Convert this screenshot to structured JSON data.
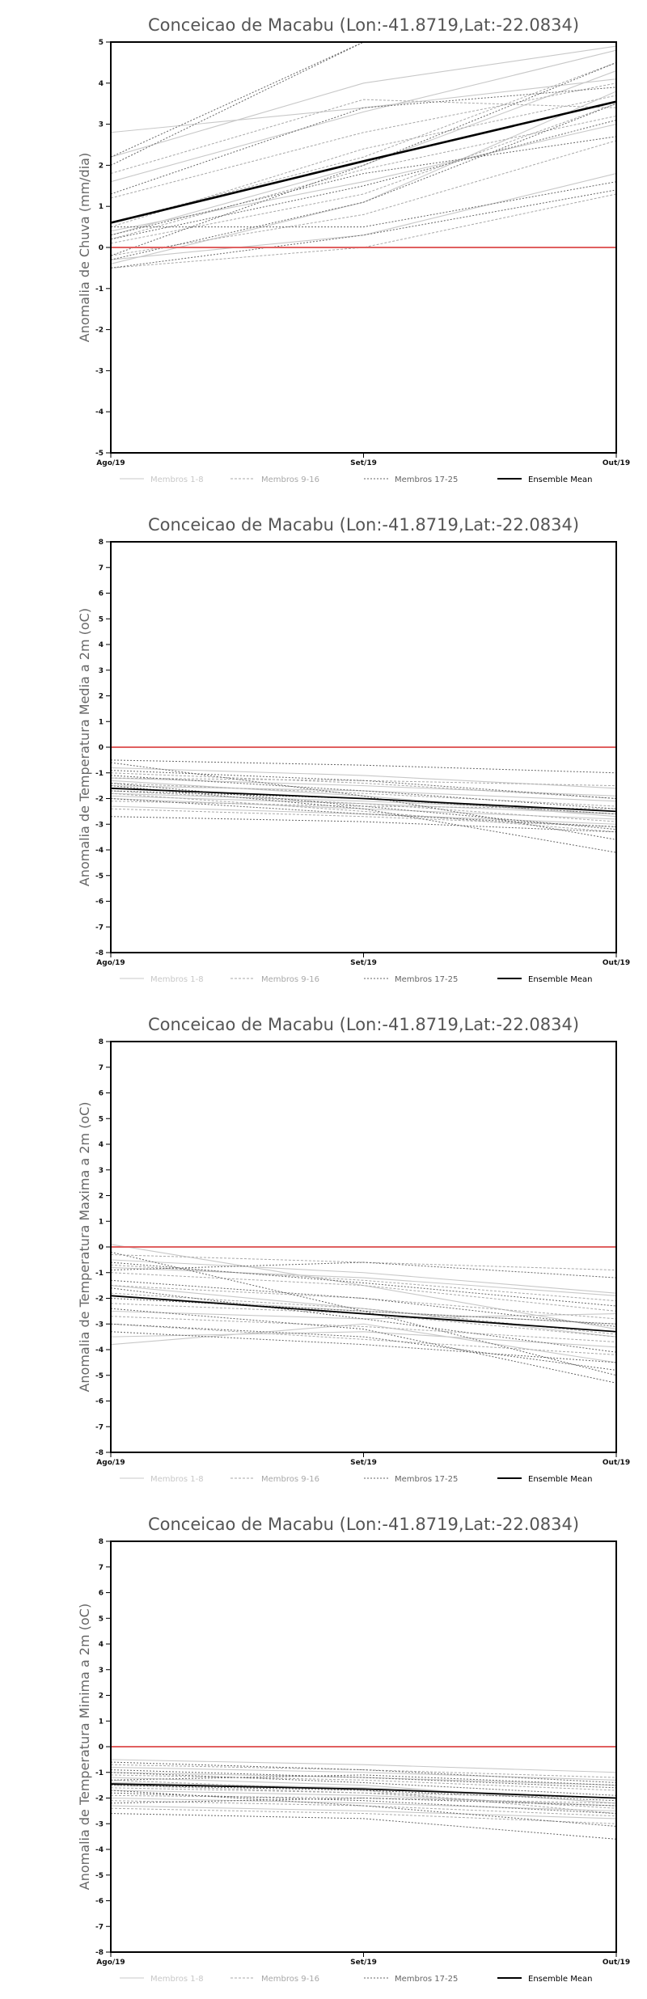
{
  "chart_data": [
    {
      "type": "line",
      "title": "Conceicao de Macabu (Lon:-41.8719,Lat:-22.0834)",
      "ylabel": "Anomalia de Chuva (mm/dia)",
      "xlabel": "",
      "categories": [
        "Ago/19",
        "Set/19",
        "Out/19"
      ],
      "ylim": [
        -5,
        5
      ],
      "yticks": [
        "-5",
        "-4",
        "-3",
        "-2",
        "-1",
        "0",
        "1",
        "2",
        "3",
        "4",
        "5"
      ],
      "zero_line_color": "#e06060",
      "legend": [
        "Membros 1-8",
        "Membros 9-16",
        "Membros 17-25",
        "Ensemble Mean"
      ],
      "legend_colors": [
        "#c8c8c8",
        "#a8a8a8",
        "#666666",
        "#000000"
      ],
      "groups": [
        {
          "name": "Membros 1-8",
          "members": [
            [
              2.8,
              3.4,
              4.1
            ],
            [
              -0.3,
              0.3,
              1.8
            ],
            [
              0.4,
              1.6,
              3.0
            ],
            [
              1.6,
              3.3,
              4.8
            ],
            [
              2.2,
              4.0,
              4.9
            ],
            [
              -0.4,
              1.1,
              3.8
            ],
            [
              0.0,
              0.0,
              0.0
            ],
            [
              0.3,
              2.0,
              4.3
            ]
          ]
        },
        {
          "name": "Membros 9-16",
          "members": [
            [
              0.1,
              1.3,
              3.5
            ],
            [
              1.8,
              3.6,
              3.4
            ],
            [
              -0.5,
              0.0,
              1.3
            ],
            [
              0.6,
              2.2,
              4.5
            ],
            [
              -0.2,
              0.8,
              2.6
            ],
            [
              1.2,
              2.8,
              4.0
            ],
            [
              0.2,
              1.9,
              3.2
            ],
            [
              0.5,
              2.4,
              3.7
            ]
          ]
        },
        {
          "name": "Membros 17-25",
          "members": [
            [
              2.0,
              5.0,
              5.0
            ],
            [
              -0.3,
              1.1,
              3.5
            ],
            [
              0.5,
              0.5,
              1.6
            ],
            [
              -0.5,
              0.3,
              1.4
            ],
            [
              1.3,
              3.4,
              3.9
            ],
            [
              -0.2,
              2.0,
              4.5
            ],
            [
              2.2,
              5.0,
              5.0
            ],
            [
              0.2,
              1.5,
              3.1
            ],
            [
              0.3,
              1.8,
              2.7
            ]
          ]
        }
      ],
      "series": [
        {
          "name": "Ensemble Mean",
          "values": [
            0.6,
            2.1,
            3.55
          ]
        }
      ]
    },
    {
      "type": "line",
      "title": "Conceicao de Macabu (Lon:-41.8719,Lat:-22.0834)",
      "ylabel": "Anomalia de Temperatura Media a 2m (oC)",
      "xlabel": "",
      "categories": [
        "Ago/19",
        "Set/19",
        "Out/19"
      ],
      "ylim": [
        -8,
        8
      ],
      "yticks": [
        "-8",
        "-7",
        "-6",
        "-5",
        "-4",
        "-3",
        "-2",
        "-1",
        "0",
        "1",
        "2",
        "3",
        "4",
        "5",
        "6",
        "7",
        "8"
      ],
      "zero_line_color": "#e06060",
      "legend": [
        "Membros 1-8",
        "Membros 9-16",
        "Membros 17-25",
        "Ensemble Mean"
      ],
      "legend_colors": [
        "#c8c8c8",
        "#a8a8a8",
        "#666666",
        "#000000"
      ],
      "groups": [
        {
          "name": "Membros 1-8",
          "members": [
            [
              -1.2,
              -1.5,
              -1.9
            ],
            [
              -1.8,
              -2.1,
              -2.5
            ],
            [
              -2.0,
              -2.4,
              -2.8
            ],
            [
              -1.5,
              -1.7,
              -2.1
            ],
            [
              -0.8,
              -1.1,
              -1.6
            ],
            [
              -2.3,
              -2.6,
              -3.0
            ],
            [
              -1.3,
              -1.9,
              -2.7
            ],
            [
              -1.9,
              -2.2,
              -2.6
            ]
          ]
        },
        {
          "name": "Membros 9-16",
          "members": [
            [
              -1.4,
              -1.8,
              -2.3
            ],
            [
              -1.7,
              -2.2,
              -2.9
            ],
            [
              -2.1,
              -2.3,
              -2.4
            ],
            [
              -1.0,
              -1.4,
              -2.0
            ],
            [
              -1.6,
              -2.0,
              -2.6
            ],
            [
              -2.4,
              -2.7,
              -3.1
            ],
            [
              -1.2,
              -1.3,
              -1.5
            ],
            [
              -1.8,
              -2.5,
              -3.3
            ]
          ]
        },
        {
          "name": "Membros 17-25",
          "members": [
            [
              -0.5,
              -0.7,
              -1.0
            ],
            [
              -0.6,
              -1.9,
              -3.6
            ],
            [
              -1.5,
              -2.4,
              -4.1
            ],
            [
              -2.7,
              -2.9,
              -3.3
            ],
            [
              -2.0,
              -2.6,
              -3.1
            ],
            [
              -1.1,
              -1.7,
              -2.4
            ],
            [
              -1.4,
              -2.3,
              -3.2
            ],
            [
              -1.7,
              -2.0,
              -2.6
            ],
            [
              -0.9,
              -1.3,
              -2.0
            ]
          ]
        }
      ],
      "series": [
        {
          "name": "Ensemble Mean",
          "values": [
            -1.6,
            -2.0,
            -2.5
          ]
        }
      ]
    },
    {
      "type": "line",
      "title": "Conceicao de Macabu (Lon:-41.8719,Lat:-22.0834)",
      "ylabel": "Anomalia de Temperatura Maxima a 2m (oC)",
      "xlabel": "",
      "categories": [
        "Ago/19",
        "Set/19",
        "Out/19"
      ],
      "ylim": [
        -8,
        8
      ],
      "yticks": [
        "-8",
        "-7",
        "-6",
        "-5",
        "-4",
        "-3",
        "-2",
        "-1",
        "0",
        "1",
        "2",
        "3",
        "4",
        "5",
        "6",
        "7",
        "8"
      ],
      "zero_line_color": "#e06060",
      "legend": [
        "Membros 1-8",
        "Membros 9-16",
        "Membros 17-25",
        "Ensemble Mean"
      ],
      "legend_colors": [
        "#c8c8c8",
        "#a8a8a8",
        "#666666",
        "#000000"
      ],
      "groups": [
        {
          "name": "Membros 1-8",
          "members": [
            [
              0.1,
              -1.5,
              -3.2
            ],
            [
              -0.8,
              -1.2,
              -1.9
            ],
            [
              -3.5,
              -3.3,
              -3.9
            ],
            [
              -1.5,
              -2.4,
              -3.5
            ],
            [
              -2.5,
              -2.8,
              -2.6
            ],
            [
              -0.5,
              -1.0,
              -1.8
            ],
            [
              -3.8,
              -3.0,
              -4.5
            ],
            [
              -1.9,
              -2.5,
              -3.0
            ]
          ]
        },
        {
          "name": "Membros 9-16",
          "members": [
            [
              -1.0,
              -1.5,
              -2.5
            ],
            [
              -2.2,
              -2.6,
              -3.5
            ],
            [
              -0.3,
              -0.6,
              -0.9
            ],
            [
              -1.5,
              -2.0,
              -2.8
            ],
            [
              -3.0,
              -3.6,
              -4.2
            ],
            [
              -1.8,
              -2.4,
              -3.4
            ],
            [
              -0.7,
              -1.3,
              -2.1
            ],
            [
              -2.7,
              -3.1,
              -3.7
            ]
          ]
        },
        {
          "name": "Membros 17-25",
          "members": [
            [
              -0.2,
              -2.5,
              -5.0
            ],
            [
              -1.6,
              -2.8,
              -4.1
            ],
            [
              -2.0,
              -2.5,
              -3.0
            ],
            [
              -3.0,
              -3.5,
              -4.8
            ],
            [
              -0.6,
              -1.4,
              -2.3
            ],
            [
              -2.4,
              -3.2,
              -5.3
            ],
            [
              -1.3,
              -2.0,
              -3.1
            ],
            [
              -3.3,
              -3.8,
              -4.5
            ],
            [
              -0.9,
              -0.6,
              -1.2
            ]
          ]
        }
      ],
      "series": [
        {
          "name": "Ensemble Mean",
          "values": [
            -1.9,
            -2.6,
            -3.3
          ]
        }
      ]
    },
    {
      "type": "line",
      "title": "Conceicao de Macabu (Lon:-41.8719,Lat:-22.0834)",
      "ylabel": "Anomalia de Temperatura Minima a 2m (oC)",
      "xlabel": "",
      "categories": [
        "Ago/19",
        "Set/19",
        "Out/19"
      ],
      "ylim": [
        -8,
        8
      ],
      "yticks": [
        "-8",
        "-7",
        "-6",
        "-5",
        "-4",
        "-3",
        "-2",
        "-1",
        "0",
        "1",
        "2",
        "3",
        "4",
        "5",
        "6",
        "7",
        "8"
      ],
      "zero_line_color": "#e06060",
      "legend": [
        "Membros 1-8",
        "Membros 9-16",
        "Membros 17-25",
        "Ensemble Mean"
      ],
      "legend_colors": [
        "#c8c8c8",
        "#a8a8a8",
        "#666666",
        "#000000"
      ],
      "groups": [
        {
          "name": "Membros 1-8",
          "members": [
            [
              -0.5,
              -0.7,
              -1.0
            ],
            [
              -1.4,
              -1.6,
              -2.0
            ],
            [
              -2.0,
              -2.2,
              -2.5
            ],
            [
              -1.0,
              -1.2,
              -1.5
            ],
            [
              -1.7,
              -1.9,
              -2.3
            ],
            [
              -2.3,
              -2.5,
              -2.8
            ],
            [
              -0.8,
              -1.0,
              -1.3
            ],
            [
              -1.2,
              -1.5,
              -2.2
            ]
          ]
        },
        {
          "name": "Membros 9-16",
          "members": [
            [
              -1.1,
              -1.3,
              -1.7
            ],
            [
              -1.5,
              -1.8,
              -2.4
            ],
            [
              -1.9,
              -2.0,
              -2.2
            ],
            [
              -0.7,
              -0.9,
              -1.2
            ],
            [
              -1.3,
              -1.7,
              -2.6
            ],
            [
              -2.1,
              -2.3,
              -2.7
            ],
            [
              -1.6,
              -1.8,
              -2.0
            ],
            [
              -2.4,
              -2.6,
              -3.0
            ]
          ]
        },
        {
          "name": "Membros 17-25",
          "members": [
            [
              -0.6,
              -0.9,
              -1.4
            ],
            [
              -2.6,
              -2.8,
              -3.6
            ],
            [
              -1.3,
              -1.1,
              -1.5
            ],
            [
              -1.8,
              -2.1,
              -2.6
            ],
            [
              -1.0,
              -1.4,
              -1.9
            ],
            [
              -2.2,
              -2.0,
              -2.3
            ],
            [
              -1.5,
              -1.7,
              -2.1
            ],
            [
              -0.9,
              -1.2,
              -1.6
            ],
            [
              -1.7,
              -2.3,
              -3.1
            ]
          ]
        }
      ],
      "series": [
        {
          "name": "Ensemble Mean",
          "values": [
            -1.45,
            -1.65,
            -2.0
          ]
        }
      ]
    }
  ]
}
